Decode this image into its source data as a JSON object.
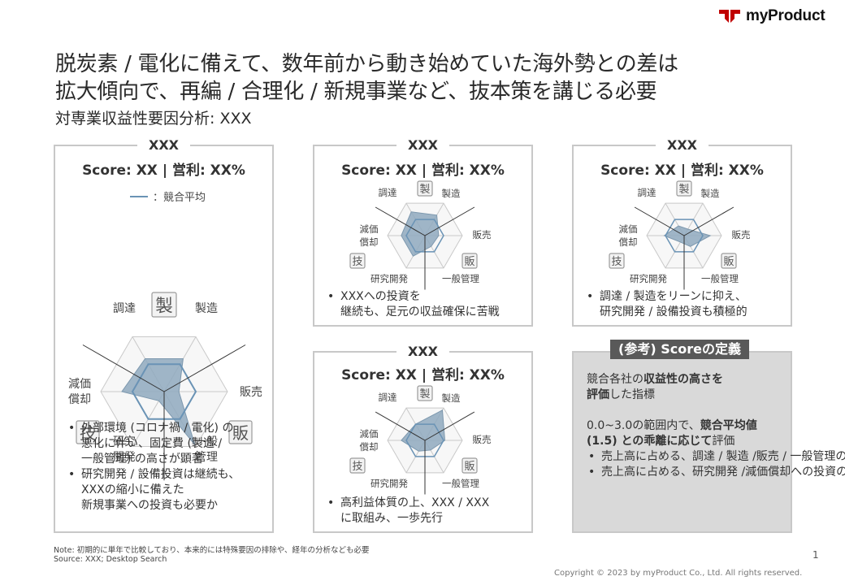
{
  "brand": {
    "logo_text": "myProduct",
    "accent": "#c00000"
  },
  "title": {
    "line1": "脱炭素 / 電化に備えて、数年前から動き始めていた海外勢との差は",
    "line2": "拡大傾向で、再編 / 合理化 / 新規事業など、抜本策を講じる必要"
  },
  "subtitle": "対専業収益性要因分析: XXX",
  "legend": {
    "label": "：競合平均",
    "color": "#6a93b5"
  },
  "axis_labels": {
    "procure": "調達",
    "manufacture": "製造",
    "sales": "販売",
    "general_admin_l1": "一般",
    "general_admin_l2": "管理",
    "general_admin": "一般管理",
    "rnd_l1": "研究",
    "rnd_l2": "開発",
    "rnd": "研究開発",
    "depreciation_l1": "減価",
    "depreciation_l2": "償却"
  },
  "badges": {
    "mfg": "製",
    "sales": "販",
    "tech": "技"
  },
  "colors": {
    "fill": "#8fa9be",
    "grid": "#c9c9c9",
    "avg": "#6a93b5"
  },
  "panels": [
    {
      "name": "XXX",
      "score": "Score: XX | 営利: XX%",
      "values": [
        1.8,
        1.8,
        0.7,
        2.9,
        0.5,
        2.0
      ],
      "bullets": [
        [
          "外部環境 (コロナ禍 / 電化) の",
          "悪化に伴い、固定費 (製造 /",
          "一般管理) の高さが顕著"
        ],
        [
          "研究開発 / 設備投資は継続も、",
          "XXXの縮小に備えた",
          "新規事業への投資も必要か"
        ]
      ]
    },
    {
      "name": "XXX",
      "score": "Score: XX | 営利: XX%",
      "values": [
        2.2,
        1.9,
        1.1,
        1.0,
        1.9,
        1.9
      ],
      "bullets": [
        [
          "XXXへの投資を",
          "継続も、足元の収益確保に苦戦"
        ]
      ]
    },
    {
      "name": "XXX",
      "score": "Score: XX | 営利: XX%",
      "values": [
        0.9,
        0.6,
        2.1,
        1.0,
        0.6,
        1.6
      ],
      "bullets": [
        [
          "調達 / 製造をリーンに抑え、",
          "研究開発 / 設備投資も積極的"
        ]
      ]
    },
    {
      "name": "XXX",
      "score": "Score: XX | 営利: XX%",
      "values": [
        1.5,
        2.8,
        1.6,
        0.9,
        1.0,
        1.9
      ],
      "bullets": [
        [
          "高利益体質の上、XXX / XXX",
          "に取組み、一歩先行"
        ]
      ]
    }
  ],
  "definition": {
    "header": "(参考) Scoreの定義",
    "p1_a": "競合各社の",
    "p1_b": "収益性の高さを",
    "p1_c": "評価",
    "p1_d": "した指標",
    "p2_a": "0.0~3.0の範囲内で、",
    "p2_b": "競合平均値",
    "p2_c": "(1.5) との乖離に応じて",
    "p2_d": "評価",
    "bullets": [
      [
        "売上高に占める、調達 / 製造 /",
        "販売 / 一般管理の低さ"
      ],
      [
        "売上高に占める、研究開発 /",
        "減価償却への投資の高さ"
      ]
    ]
  },
  "note": "Note: 初期的に単年で比較しており、本来的には特殊要因の排除や、経年の分析なども必要",
  "source": "Source: XXX; Desktop Search",
  "page_number": "1",
  "copyright": "Copyright © 2023 by myProduct Co., Ltd.  All rights reserved."
}
